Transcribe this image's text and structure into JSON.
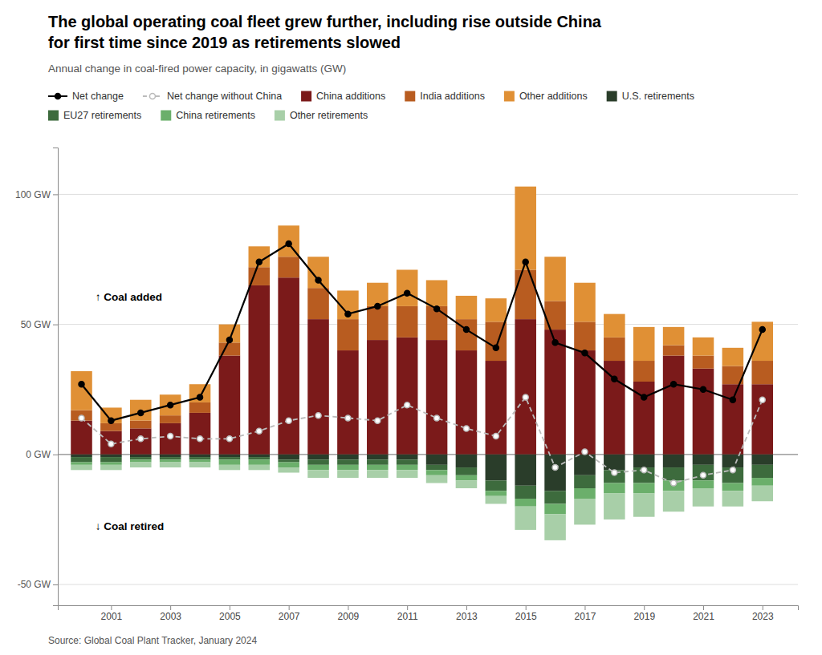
{
  "chart_data": {
    "type": "bar",
    "title": "The global operating coal fleet grew further, including rise outside China for first time since 2019 as retirements slowed",
    "subtitle": "Annual change in coal-fired power capacity, in gigawatts (GW)",
    "source": "Source: Global Coal Plant Tracker, January 2024",
    "annotations": [
      "↑ Coal added",
      "↓ Coal retired"
    ],
    "stacked": true,
    "grid": true,
    "legend": "top",
    "x": [
      2000,
      2001,
      2002,
      2003,
      2004,
      2005,
      2006,
      2007,
      2008,
      2009,
      2010,
      2011,
      2012,
      2013,
      2014,
      2015,
      2016,
      2017,
      2018,
      2019,
      2020,
      2021,
      2022,
      2023
    ],
    "xlim": [
      1999.2,
      2024.2
    ],
    "xticks": [
      2001,
      2003,
      2005,
      2007,
      2009,
      2011,
      2013,
      2015,
      2017,
      2019,
      2021,
      2023
    ],
    "ylim": [
      -58,
      118
    ],
    "yticks": [
      {
        "value": -50,
        "label": "-50 GW"
      },
      {
        "value": 0,
        "label": "0 GW"
      },
      {
        "value": 50,
        "label": "50 GW"
      },
      {
        "value": 100,
        "label": "100 GW"
      }
    ],
    "series": [
      {
        "name": "Net change",
        "type": "line",
        "color": "#000000",
        "line_style": "solid",
        "marker": "circle",
        "values": [
          27,
          13,
          16,
          19,
          22,
          44,
          74,
          81,
          67,
          54,
          57,
          62,
          56,
          48,
          41,
          74,
          43,
          39,
          29,
          22,
          27,
          25,
          21,
          48
        ]
      },
      {
        "name": "Net change without China",
        "type": "line",
        "color": "#BBBBBB",
        "line_style": "dashed",
        "marker": "circle",
        "values": [
          14,
          4,
          6,
          7,
          6,
          6,
          9,
          13,
          15,
          14,
          13,
          19,
          14,
          10,
          7,
          22,
          -5,
          1,
          -7,
          -6,
          -11,
          -8,
          -6,
          21
        ]
      },
      {
        "name": "China additions",
        "type": "bar",
        "color": "#7B1A1A",
        "values": [
          13,
          9,
          10,
          12,
          16,
          38,
          65,
          68,
          52,
          40,
          44,
          45,
          44,
          40,
          36,
          52,
          48,
          40,
          36,
          28,
          38,
          33,
          27,
          27
        ]
      },
      {
        "name": "India additions",
        "type": "bar",
        "color": "#B85C20",
        "values": [
          4,
          3,
          3,
          3,
          4,
          5,
          7,
          8,
          12,
          12,
          13,
          12,
          13,
          12,
          15,
          19,
          11,
          11,
          9,
          8,
          4,
          5,
          7,
          9
        ]
      },
      {
        "name": "Other additions",
        "type": "bar",
        "color": "#E09035",
        "values": [
          15,
          6,
          8,
          8,
          7,
          7,
          8,
          12,
          12,
          11,
          9,
          14,
          10,
          9,
          9,
          32,
          17,
          15,
          9,
          13,
          7,
          7,
          7,
          15
        ]
      },
      {
        "name": "U.S. retirements",
        "type": "bar",
        "color": "#2A3D2A",
        "values": [
          -1,
          -1,
          -1,
          -1,
          -1,
          -1,
          -1,
          -2,
          -2,
          -2,
          -2,
          -2,
          -4,
          -5,
          -10,
          -12,
          -14,
          -8,
          -6,
          -5,
          -5,
          -4,
          -5,
          -4
        ]
      },
      {
        "name": "EU27 retirements",
        "type": "bar",
        "color": "#3D6B3D",
        "values": [
          -2,
          -2,
          -1,
          -1,
          -1,
          -1,
          -1,
          -1,
          -2,
          -2,
          -2,
          -2,
          -2,
          -3,
          -4,
          -5,
          -5,
          -5,
          -5,
          -6,
          -5,
          -6,
          -6,
          -5
        ]
      },
      {
        "name": "China retirements",
        "type": "bar",
        "color": "#6BAF6B",
        "values": [
          -1,
          -1,
          -1,
          -1,
          -1,
          -2,
          -2,
          -2,
          -2,
          -2,
          -2,
          -2,
          -2,
          -2,
          -2,
          -3,
          -4,
          -4,
          -4,
          -4,
          -4,
          -3,
          -3,
          -3
        ]
      },
      {
        "name": "Other retirements",
        "type": "bar",
        "color": "#A8CFA8",
        "values": [
          -2,
          -2,
          -2,
          -2,
          -2,
          -2,
          -2,
          -2,
          -3,
          -3,
          -3,
          -3,
          -3,
          -3,
          -3,
          -9,
          -10,
          -10,
          -10,
          -9,
          -8,
          -7,
          -6,
          -6
        ]
      }
    ]
  }
}
